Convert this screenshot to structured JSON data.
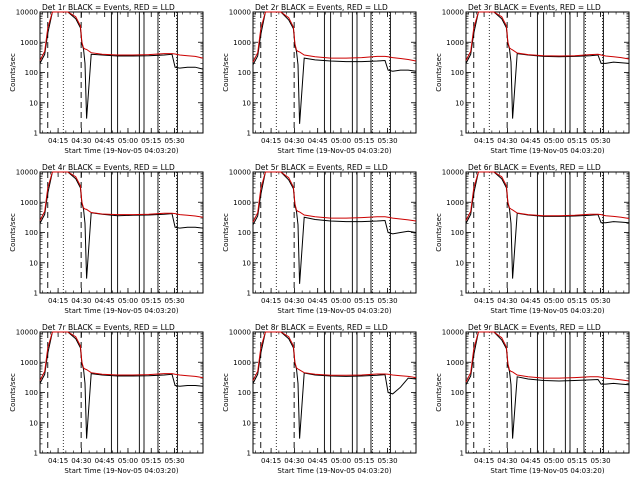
{
  "chart_data": [
    {
      "type": "line",
      "title": "Det 1r BLACK = Events, RED = LLD",
      "xlabel": "Start Time (19-Nov-05 04:03:20)",
      "ylabel": "Counts/sec",
      "xticks": [
        "04:15",
        "04:30",
        "04:45",
        "05:00",
        "05:15",
        "05:30"
      ],
      "yticks": [
        "1",
        "10",
        "100",
        "1000",
        "10000"
      ],
      "ylim": [
        1,
        10000
      ],
      "yscale": "log",
      "x_minutes_from_start": [
        0,
        3,
        5,
        8,
        10,
        13,
        18,
        23,
        26,
        27,
        28,
        29,
        30,
        33,
        40,
        50,
        60,
        70,
        80,
        85,
        87,
        90,
        95,
        100,
        105
      ],
      "series": [
        {
          "name": "Events",
          "color": "#000000",
          "values": [
            200,
            400,
            2000,
            10000,
            10000,
            10000,
            10000,
            6000,
            3000,
            900,
            600,
            200,
            3,
            400,
            380,
            350,
            350,
            360,
            380,
            400,
            150,
            140,
            150,
            150,
            130
          ]
        },
        {
          "name": "LLD",
          "color": "#cc0000",
          "values": [
            250,
            500,
            3000,
            10000,
            10000,
            10000,
            10000,
            7000,
            3500,
            1000,
            650,
            600,
            580,
            450,
            400,
            380,
            380,
            390,
            420,
            420,
            410,
            380,
            360,
            340,
            300
          ]
        }
      ]
    },
    {
      "type": "line",
      "title": "Det 2r BLACK = Events, RED = LLD",
      "xlabel": "Start Time (19-Nov-05 04:03:20)",
      "ylabel": "Counts/sec",
      "xticks": [
        "04:15",
        "04:30",
        "04:45",
        "05:00",
        "05:15",
        "05:30"
      ],
      "yticks": [
        "1",
        "10",
        "100",
        "1000",
        "10000"
      ],
      "ylim": [
        1,
        10000
      ],
      "yscale": "log",
      "x_minutes_from_start": [
        0,
        3,
        5,
        8,
        10,
        13,
        18,
        23,
        26,
        27,
        28,
        29,
        30,
        33,
        40,
        50,
        60,
        70,
        80,
        85,
        87,
        90,
        95,
        100,
        105
      ],
      "series": [
        {
          "name": "Events",
          "color": "#000000",
          "values": [
            180,
            350,
            1800,
            10000,
            10000,
            10000,
            10000,
            5500,
            2800,
            800,
            500,
            180,
            2,
            300,
            260,
            240,
            230,
            230,
            240,
            250,
            120,
            110,
            120,
            120,
            110
          ]
        },
        {
          "name": "LLD",
          "color": "#cc0000",
          "values": [
            220,
            450,
            2800,
            10000,
            10000,
            10000,
            10000,
            6500,
            3200,
            900,
            550,
            500,
            480,
            380,
            330,
            300,
            300,
            310,
            340,
            340,
            330,
            310,
            290,
            270,
            240
          ]
        }
      ]
    },
    {
      "type": "line",
      "title": "Det 3r BLACK = Events, RED = LLD",
      "xlabel": "Start Time (19-Nov-05 04:03:20)",
      "ylabel": "Counts/sec",
      "xticks": [
        "04:15",
        "04:30",
        "04:45",
        "05:00",
        "05:15",
        "05:30"
      ],
      "yticks": [
        "1",
        "10",
        "100",
        "1000",
        "10000"
      ],
      "ylim": [
        1,
        10000
      ],
      "yscale": "log",
      "x_minutes_from_start": [
        0,
        3,
        5,
        8,
        10,
        13,
        18,
        23,
        26,
        27,
        28,
        29,
        30,
        33,
        40,
        50,
        60,
        70,
        80,
        85,
        87,
        90,
        95,
        100,
        105
      ],
      "series": [
        {
          "name": "Events",
          "color": "#000000",
          "values": [
            200,
            400,
            2000,
            10000,
            10000,
            10000,
            10000,
            6000,
            3000,
            900,
            600,
            220,
            3,
            420,
            380,
            340,
            330,
            340,
            360,
            380,
            200,
            200,
            220,
            210,
            200
          ]
        },
        {
          "name": "LLD",
          "color": "#cc0000",
          "values": [
            250,
            500,
            3000,
            10000,
            10000,
            10000,
            10000,
            7000,
            3500,
            1000,
            650,
            600,
            560,
            440,
            390,
            360,
            350,
            360,
            390,
            400,
            380,
            350,
            330,
            310,
            280
          ]
        }
      ]
    },
    {
      "type": "line",
      "title": "Det 4r BLACK = Events, RED = LLD",
      "xlabel": "Start Time (19-Nov-05 04:03:20)",
      "ylabel": "Counts/sec",
      "xticks": [
        "04:15",
        "04:30",
        "04:45",
        "05:00",
        "05:15",
        "05:30"
      ],
      "yticks": [
        "1",
        "10",
        "100",
        "1000",
        "10000"
      ],
      "ylim": [
        1,
        10000
      ],
      "yscale": "log",
      "x_minutes_from_start": [
        0,
        3,
        5,
        8,
        10,
        13,
        18,
        23,
        26,
        27,
        28,
        29,
        30,
        33,
        40,
        50,
        60,
        70,
        80,
        85,
        87,
        90,
        95,
        100,
        105
      ],
      "series": [
        {
          "name": "Events",
          "color": "#000000",
          "values": [
            200,
            400,
            2000,
            10000,
            10000,
            10000,
            10000,
            6000,
            3000,
            900,
            600,
            200,
            3,
            450,
            400,
            360,
            370,
            380,
            400,
            420,
            150,
            140,
            150,
            150,
            140
          ]
        },
        {
          "name": "LLD",
          "color": "#cc0000",
          "values": [
            250,
            500,
            3000,
            10000,
            10000,
            10000,
            10000,
            7000,
            3500,
            1000,
            650,
            600,
            580,
            460,
            410,
            390,
            390,
            400,
            430,
            430,
            420,
            390,
            370,
            350,
            320
          ]
        }
      ]
    },
    {
      "type": "line",
      "title": "Det 5r BLACK = Events, RED = LLD",
      "xlabel": "Start Time (19-Nov-05 04:03:20)",
      "ylabel": "Counts/sec",
      "xticks": [
        "04:15",
        "04:30",
        "04:45",
        "05:00",
        "05:15",
        "05:30"
      ],
      "yticks": [
        "1",
        "10",
        "100",
        "1000",
        "10000"
      ],
      "ylim": [
        1,
        10000
      ],
      "yscale": "log",
      "x_minutes_from_start": [
        0,
        3,
        5,
        8,
        10,
        13,
        18,
        23,
        26,
        27,
        28,
        29,
        30,
        33,
        40,
        50,
        60,
        70,
        80,
        85,
        87,
        90,
        95,
        100,
        105
      ],
      "series": [
        {
          "name": "Events",
          "color": "#000000",
          "values": [
            180,
            350,
            1800,
            10000,
            10000,
            10000,
            10000,
            5500,
            2800,
            800,
            500,
            180,
            2,
            320,
            270,
            240,
            230,
            230,
            240,
            250,
            100,
            90,
            100,
            110,
            100
          ]
        },
        {
          "name": "LLD",
          "color": "#cc0000",
          "values": [
            220,
            450,
            2800,
            10000,
            10000,
            10000,
            10000,
            6500,
            3200,
            900,
            550,
            500,
            480,
            380,
            330,
            300,
            300,
            310,
            330,
            330,
            320,
            300,
            280,
            260,
            240
          ]
        }
      ]
    },
    {
      "type": "line",
      "title": "Det 6r BLACK = Events, RED = LLD",
      "xlabel": "Start Time (19-Nov-05 04:03:20)",
      "ylabel": "Counts/sec",
      "xticks": [
        "04:15",
        "04:30",
        "04:45",
        "05:00",
        "05:15",
        "05:30"
      ],
      "yticks": [
        "1",
        "10",
        "100",
        "1000",
        "10000"
      ],
      "ylim": [
        1,
        10000
      ],
      "yscale": "log",
      "x_minutes_from_start": [
        0,
        3,
        5,
        8,
        10,
        13,
        18,
        23,
        26,
        27,
        28,
        29,
        30,
        33,
        40,
        50,
        60,
        70,
        80,
        85,
        87,
        90,
        95,
        100,
        105
      ],
      "series": [
        {
          "name": "Events",
          "color": "#000000",
          "values": [
            200,
            400,
            2000,
            10000,
            10000,
            10000,
            10000,
            6000,
            3000,
            900,
            600,
            200,
            3,
            430,
            380,
            340,
            340,
            350,
            370,
            390,
            210,
            210,
            230,
            220,
            210
          ]
        },
        {
          "name": "LLD",
          "color": "#cc0000",
          "values": [
            250,
            500,
            3000,
            10000,
            10000,
            10000,
            10000,
            7000,
            3500,
            1000,
            650,
            600,
            560,
            440,
            390,
            360,
            360,
            370,
            400,
            400,
            390,
            360,
            340,
            320,
            290
          ]
        }
      ]
    },
    {
      "type": "line",
      "title": "Det 7r BLACK = Events, RED = LLD",
      "xlabel": "Start Time (19-Nov-05 04:03:20)",
      "ylabel": "Counts/sec",
      "xticks": [
        "04:15",
        "04:30",
        "04:45",
        "05:00",
        "05:15",
        "05:30"
      ],
      "yticks": [
        "1",
        "10",
        "100",
        "1000",
        "10000"
      ],
      "ylim": [
        1,
        10000
      ],
      "yscale": "log",
      "x_minutes_from_start": [
        0,
        3,
        5,
        8,
        10,
        13,
        18,
        23,
        26,
        27,
        28,
        29,
        30,
        33,
        40,
        50,
        60,
        70,
        80,
        85,
        87,
        90,
        95,
        100,
        105
      ],
      "series": [
        {
          "name": "Events",
          "color": "#000000",
          "values": [
            200,
            400,
            2000,
            10000,
            10000,
            10000,
            10000,
            6000,
            3000,
            900,
            600,
            200,
            3,
            420,
            380,
            350,
            350,
            360,
            380,
            400,
            170,
            160,
            170,
            170,
            160
          ]
        },
        {
          "name": "LLD",
          "color": "#cc0000",
          "values": [
            250,
            500,
            3000,
            10000,
            10000,
            10000,
            10000,
            7000,
            3500,
            1000,
            650,
            600,
            570,
            450,
            400,
            380,
            380,
            390,
            420,
            420,
            400,
            380,
            360,
            340,
            310
          ]
        }
      ]
    },
    {
      "type": "line",
      "title": "Det 8r BLACK = Events, RED = LLD",
      "xlabel": "Start Time (19-Nov-05 04:03:20)",
      "ylabel": "Counts/sec",
      "xticks": [
        "04:15",
        "04:30",
        "04:45",
        "05:00",
        "05:15",
        "05:30"
      ],
      "yticks": [
        "1",
        "10",
        "100",
        "1000",
        "10000"
      ],
      "ylim": [
        1,
        10000
      ],
      "yscale": "log",
      "x_minutes_from_start": [
        0,
        3,
        5,
        8,
        10,
        13,
        18,
        23,
        26,
        27,
        28,
        29,
        30,
        33,
        40,
        50,
        60,
        70,
        80,
        85,
        87,
        90,
        95,
        100,
        105
      ],
      "series": [
        {
          "name": "Events",
          "color": "#000000",
          "values": [
            200,
            400,
            2000,
            10000,
            10000,
            10000,
            10000,
            6000,
            3000,
            900,
            600,
            200,
            3,
            440,
            380,
            350,
            340,
            350,
            370,
            390,
            100,
            90,
            150,
            300,
            280
          ]
        },
        {
          "name": "LLD",
          "color": "#cc0000",
          "values": [
            250,
            500,
            3000,
            10000,
            10000,
            10000,
            10000,
            7000,
            3500,
            1000,
            650,
            600,
            560,
            450,
            400,
            370,
            370,
            380,
            410,
            410,
            400,
            380,
            360,
            340,
            310
          ]
        }
      ]
    },
    {
      "type": "line",
      "title": "Det 9r BLACK = Events, RED = LLD",
      "xlabel": "Start Time (19-Nov-05 04:03:20)",
      "ylabel": "Counts/sec",
      "xticks": [
        "04:15",
        "04:30",
        "04:45",
        "05:00",
        "05:15",
        "05:30"
      ],
      "yticks": [
        "1",
        "10",
        "100",
        "1000",
        "10000"
      ],
      "ylim": [
        1,
        10000
      ],
      "yscale": "log",
      "x_minutes_from_start": [
        0,
        3,
        5,
        8,
        10,
        13,
        18,
        23,
        26,
        27,
        28,
        29,
        30,
        33,
        40,
        50,
        60,
        70,
        80,
        85,
        87,
        90,
        95,
        100,
        105
      ],
      "series": [
        {
          "name": "Events",
          "color": "#000000",
          "values": [
            180,
            350,
            1800,
            10000,
            10000,
            10000,
            10000,
            5500,
            2800,
            800,
            500,
            180,
            3,
            330,
            280,
            250,
            240,
            250,
            260,
            270,
            190,
            190,
            200,
            190,
            180
          ]
        },
        {
          "name": "LLD",
          "color": "#cc0000",
          "values": [
            220,
            450,
            2800,
            10000,
            10000,
            10000,
            10000,
            6500,
            3200,
            900,
            550,
            500,
            480,
            380,
            330,
            300,
            300,
            310,
            330,
            330,
            320,
            300,
            280,
            260,
            240
          ]
        }
      ]
    }
  ]
}
